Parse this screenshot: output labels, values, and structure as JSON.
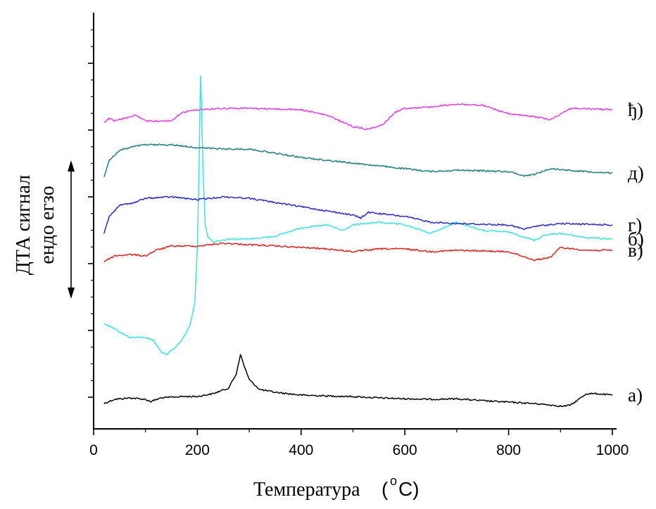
{
  "chart_data": {
    "type": "line",
    "title": "",
    "xlabel_main": "Температура",
    "xlabel_unit_open": "(",
    "xlabel_unit_sup": "o",
    "xlabel_unit_rest": "C)",
    "ylabel_line1": "ДТА сигнал",
    "ylabel_line2": "ендо егзо",
    "xlim": [
      0,
      1000
    ],
    "x_ticks": [
      0,
      200,
      400,
      600,
      800,
      1000
    ],
    "x_tick_labels": [
      "0",
      "200",
      "400",
      "600",
      "800",
      "1000"
    ],
    "grid": false,
    "legend": "labels at right end of each curve",
    "series": [
      {
        "name": "а)",
        "color": "#000000",
        "points": [
          [
            20,
            -0.15
          ],
          [
            40,
            0
          ],
          [
            70,
            0.05
          ],
          [
            100,
            0
          ],
          [
            110,
            -0.08
          ],
          [
            130,
            0.05
          ],
          [
            170,
            0.1
          ],
          [
            200,
            0.1
          ],
          [
            230,
            0.2
          ],
          [
            260,
            0.4
          ],
          [
            275,
            0.9
          ],
          [
            283,
            1.6
          ],
          [
            290,
            1.2
          ],
          [
            300,
            0.7
          ],
          [
            320,
            0.35
          ],
          [
            350,
            0.25
          ],
          [
            400,
            0.15
          ],
          [
            450,
            0.12
          ],
          [
            500,
            0.1
          ],
          [
            550,
            0.05
          ],
          [
            600,
            0.02
          ],
          [
            650,
            0
          ],
          [
            700,
            0.02
          ],
          [
            750,
            -0.05
          ],
          [
            800,
            -0.1
          ],
          [
            850,
            -0.15
          ],
          [
            880,
            -0.2
          ],
          [
            905,
            -0.25
          ],
          [
            920,
            -0.2
          ],
          [
            935,
            0
          ],
          [
            950,
            0.2
          ],
          [
            970,
            0.2
          ],
          [
            1000,
            0.15
          ]
        ]
      },
      {
        "name": "б)",
        "color": "#3fe2e2",
        "points": [
          [
            20,
            2.7
          ],
          [
            40,
            2.5
          ],
          [
            70,
            2.2
          ],
          [
            100,
            2.2
          ],
          [
            115,
            2.1
          ],
          [
            130,
            1.7
          ],
          [
            140,
            1.6
          ],
          [
            155,
            1.8
          ],
          [
            170,
            2.1
          ],
          [
            185,
            2.6
          ],
          [
            195,
            3.4
          ],
          [
            200,
            5.5
          ],
          [
            203,
            8.0
          ],
          [
            206,
            11.5
          ],
          [
            208,
            10.5
          ],
          [
            211,
            8.0
          ],
          [
            215,
            6.2
          ],
          [
            220,
            5.8
          ],
          [
            230,
            5.6
          ],
          [
            260,
            5.7
          ],
          [
            300,
            5.7
          ],
          [
            350,
            5.8
          ],
          [
            400,
            6.1
          ],
          [
            450,
            6.2
          ],
          [
            480,
            6.0
          ],
          [
            500,
            6.2
          ],
          [
            550,
            6.3
          ],
          [
            600,
            6.2
          ],
          [
            650,
            5.9
          ],
          [
            700,
            6.3
          ],
          [
            750,
            6.0
          ],
          [
            800,
            5.95
          ],
          [
            850,
            5.65
          ],
          [
            870,
            5.85
          ],
          [
            900,
            5.9
          ],
          [
            950,
            5.75
          ],
          [
            1000,
            5.7
          ]
        ]
      },
      {
        "name": "в)",
        "color": "#dd2222",
        "points": [
          [
            20,
            4.9
          ],
          [
            40,
            5.1
          ],
          [
            70,
            5.15
          ],
          [
            100,
            5.1
          ],
          [
            120,
            5.3
          ],
          [
            150,
            5.45
          ],
          [
            200,
            5.45
          ],
          [
            250,
            5.55
          ],
          [
            300,
            5.5
          ],
          [
            400,
            5.4
          ],
          [
            450,
            5.35
          ],
          [
            500,
            5.25
          ],
          [
            550,
            5.35
          ],
          [
            600,
            5.35
          ],
          [
            650,
            5.25
          ],
          [
            700,
            5.3
          ],
          [
            800,
            5.25
          ],
          [
            850,
            4.95
          ],
          [
            880,
            5.05
          ],
          [
            900,
            5.4
          ],
          [
            950,
            5.3
          ],
          [
            1000,
            5.3
          ]
        ]
      },
      {
        "name": "г)",
        "color": "#2a2ac8",
        "points": [
          [
            20,
            5.9
          ],
          [
            30,
            6.5
          ],
          [
            50,
            6.9
          ],
          [
            80,
            7.0
          ],
          [
            100,
            7.15
          ],
          [
            150,
            7.2
          ],
          [
            200,
            7.1
          ],
          [
            250,
            7.2
          ],
          [
            300,
            7.15
          ],
          [
            350,
            7.0
          ],
          [
            400,
            6.85
          ],
          [
            450,
            6.7
          ],
          [
            500,
            6.55
          ],
          [
            515,
            6.45
          ],
          [
            530,
            6.65
          ],
          [
            600,
            6.5
          ],
          [
            650,
            6.3
          ],
          [
            700,
            6.25
          ],
          [
            800,
            6.2
          ],
          [
            830,
            6.05
          ],
          [
            850,
            6.15
          ],
          [
            900,
            6.25
          ],
          [
            1000,
            6.2
          ]
        ]
      },
      {
        "name": "д)",
        "color": "#1f7f7f",
        "points": [
          [
            20,
            7.9
          ],
          [
            30,
            8.5
          ],
          [
            50,
            8.85
          ],
          [
            80,
            9.0
          ],
          [
            100,
            9.05
          ],
          [
            150,
            9.05
          ],
          [
            200,
            8.95
          ],
          [
            250,
            8.9
          ],
          [
            300,
            8.9
          ],
          [
            350,
            8.75
          ],
          [
            400,
            8.6
          ],
          [
            450,
            8.5
          ],
          [
            500,
            8.4
          ],
          [
            550,
            8.3
          ],
          [
            600,
            8.2
          ],
          [
            650,
            8.1
          ],
          [
            700,
            8.15
          ],
          [
            800,
            8.1
          ],
          [
            830,
            7.95
          ],
          [
            850,
            8.0
          ],
          [
            880,
            8.2
          ],
          [
            950,
            8.1
          ],
          [
            1000,
            8.05
          ]
        ]
      },
      {
        "name": "ђ)",
        "color": "#e040e0",
        "points": [
          [
            20,
            9.85
          ],
          [
            30,
            10.0
          ],
          [
            40,
            9.9
          ],
          [
            60,
            10.0
          ],
          [
            80,
            10.1
          ],
          [
            100,
            9.9
          ],
          [
            150,
            9.9
          ],
          [
            170,
            10.2
          ],
          [
            200,
            10.3
          ],
          [
            250,
            10.35
          ],
          [
            300,
            10.35
          ],
          [
            400,
            10.3
          ],
          [
            450,
            10.1
          ],
          [
            500,
            9.7
          ],
          [
            530,
            9.6
          ],
          [
            560,
            9.8
          ],
          [
            580,
            10.2
          ],
          [
            600,
            10.35
          ],
          [
            650,
            10.4
          ],
          [
            700,
            10.5
          ],
          [
            750,
            10.45
          ],
          [
            800,
            10.15
          ],
          [
            850,
            10.05
          ],
          [
            880,
            9.95
          ],
          [
            920,
            10.35
          ],
          [
            1000,
            10.3
          ]
        ]
      }
    ]
  }
}
